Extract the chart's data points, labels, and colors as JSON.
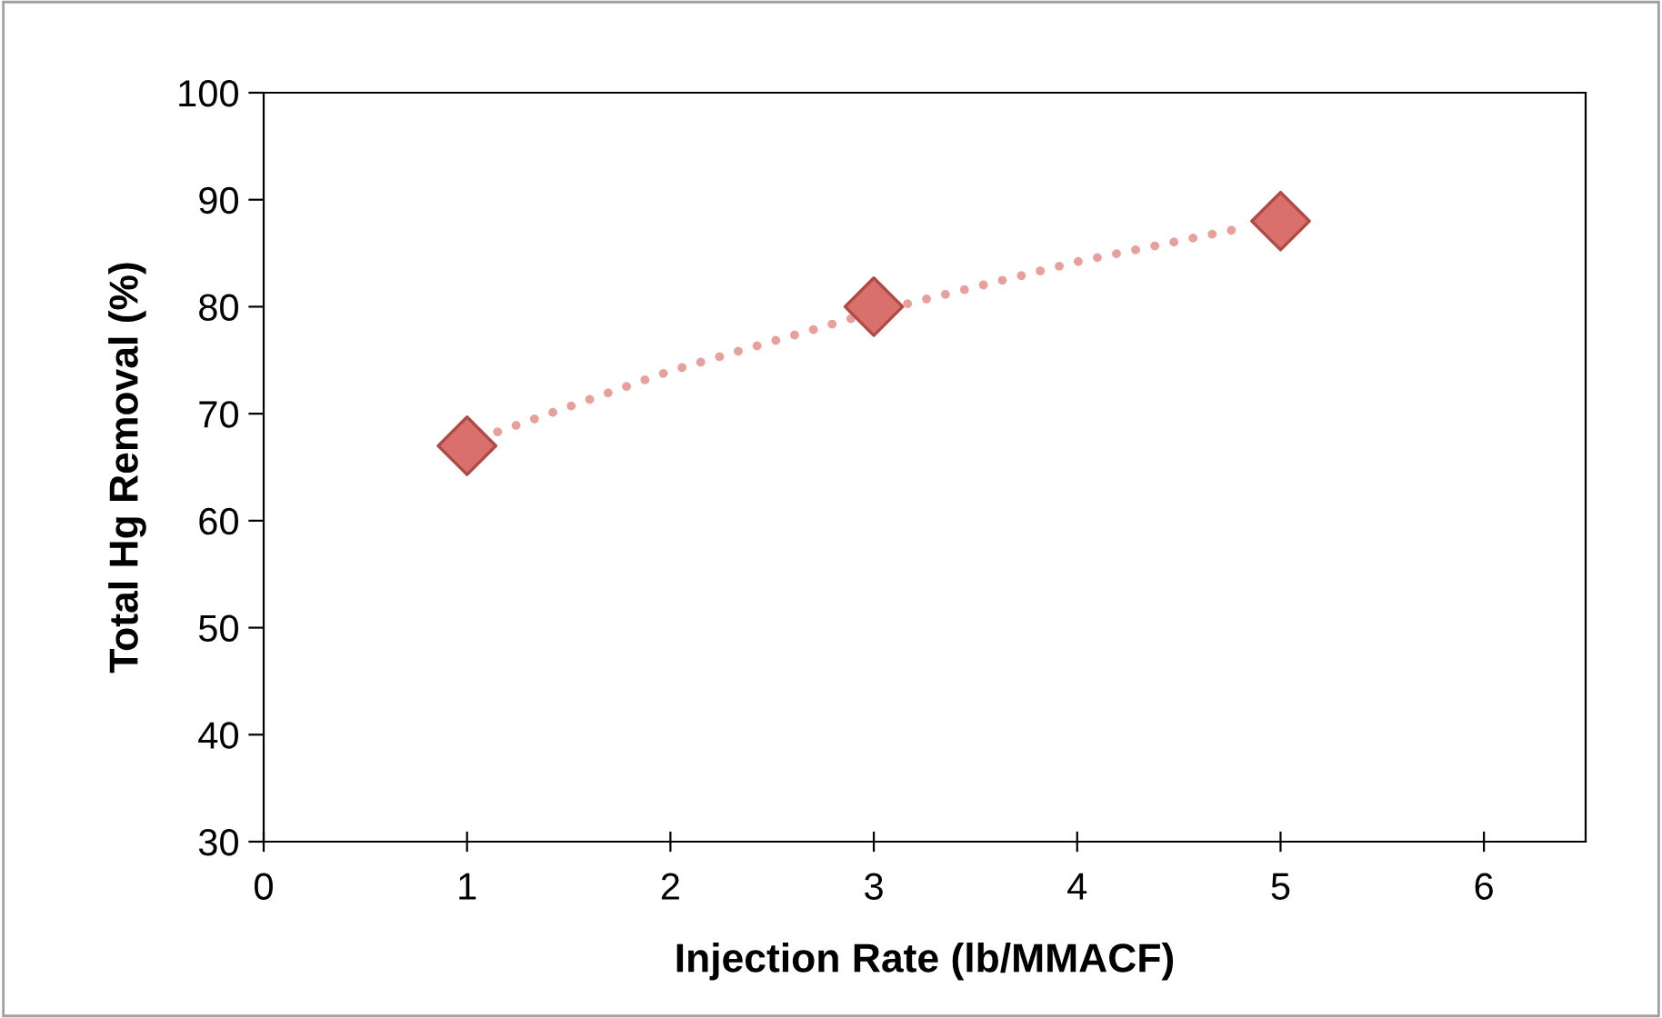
{
  "chart_data": {
    "type": "scatter",
    "xlabel": "Injection Rate (lb/MMACF)",
    "ylabel": "Total Hg Removal (%)",
    "xlim": [
      0,
      6.5
    ],
    "xticks": [
      0,
      1,
      2,
      3,
      4,
      5,
      6
    ],
    "ylim": [
      30,
      100
    ],
    "yticks": [
      30,
      40,
      50,
      60,
      70,
      80,
      90,
      100
    ],
    "grid": false,
    "legend": false,
    "series": [
      {
        "type": "line",
        "color": "#e8a09c",
        "line_style": "dotted",
        "marker": "none",
        "x": [
          1.15,
          2,
          3,
          4,
          4.85
        ],
        "values": [
          68.3,
          74,
          79.5,
          84.2,
          87.5
        ]
      },
      {
        "color": "#d9706c",
        "marker": "diamond",
        "x": [
          1,
          3,
          5
        ],
        "values": [
          67,
          80,
          88
        ]
      }
    ]
  }
}
